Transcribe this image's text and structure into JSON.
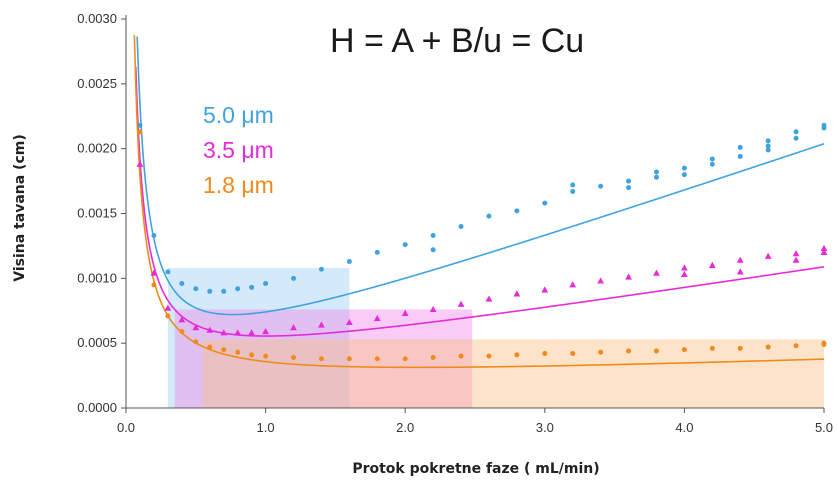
{
  "chart_data": {
    "type": "scatter",
    "title": "H = A + B/u = Cu",
    "xlabel": "Protok pokretne faze ( mL/min)",
    "ylabel": "Visina tavana (cm)",
    "xlim": [
      0,
      5
    ],
    "ylim": [
      0,
      0.003
    ],
    "x_ticks": [
      "0.0",
      "1.0",
      "2.0",
      "3.0",
      "4.0",
      "5.0"
    ],
    "y_ticks": [
      "0.0000",
      "0.0005",
      "0.0010",
      "0.0015",
      "0.0020",
      "0.0025",
      "0.0030"
    ],
    "legend": [
      "5.0 μm",
      "3.5 μm",
      "1.8 μm"
    ],
    "grid": false,
    "series": [
      {
        "name": "5.0 μm",
        "color": "#3fa3e0",
        "marker": "circle",
        "curve": {
          "A": 0.00016,
          "B": 0.000214,
          "C": 0.000367
        },
        "points": [
          [
            0.1,
            0.00218
          ],
          [
            0.2,
            0.00133
          ],
          [
            0.3,
            0.00105
          ],
          [
            0.4,
            0.00096
          ],
          [
            0.5,
            0.00092
          ],
          [
            0.6,
            0.0009
          ],
          [
            0.7,
            0.0009
          ],
          [
            0.8,
            0.00092
          ],
          [
            0.9,
            0.00093
          ],
          [
            1.0,
            0.00096
          ],
          [
            1.2,
            0.001
          ],
          [
            1.4,
            0.00107
          ],
          [
            1.6,
            0.00113
          ],
          [
            1.8,
            0.0012
          ],
          [
            2.0,
            0.00126
          ],
          [
            2.2,
            0.00133
          ],
          [
            2.2,
            0.00122
          ],
          [
            2.4,
            0.0014
          ],
          [
            2.6,
            0.00148
          ],
          [
            2.8,
            0.00152
          ],
          [
            3.0,
            0.00158
          ],
          [
            3.2,
            0.00167
          ],
          [
            3.2,
            0.00172
          ],
          [
            3.4,
            0.00171
          ],
          [
            3.6,
            0.00175
          ],
          [
            3.6,
            0.0017
          ],
          [
            3.8,
            0.00178
          ],
          [
            3.8,
            0.00182
          ],
          [
            4.0,
            0.0018
          ],
          [
            4.0,
            0.00185
          ],
          [
            4.2,
            0.00192
          ],
          [
            4.2,
            0.00188
          ],
          [
            4.4,
            0.00194
          ],
          [
            4.4,
            0.00201
          ],
          [
            4.6,
            0.00206
          ],
          [
            4.6,
            0.00199
          ],
          [
            4.6,
            0.00202
          ],
          [
            4.8,
            0.00208
          ],
          [
            4.8,
            0.00213
          ],
          [
            5.0,
            0.00216
          ],
          [
            5.0,
            0.00218
          ]
        ]
      },
      {
        "name": "3.5 μm",
        "color": "#e62bd8",
        "marker": "triangle",
        "curve": {
          "A": 0.00022,
          "B": 0.000168,
          "C": 0.000167
        },
        "points": [
          [
            0.1,
            0.00188
          ],
          [
            0.2,
            0.00104
          ],
          [
            0.3,
            0.00077
          ],
          [
            0.4,
            0.00068
          ],
          [
            0.5,
            0.00062
          ],
          [
            0.6,
            0.0006
          ],
          [
            0.7,
            0.00058
          ],
          [
            0.8,
            0.00058
          ],
          [
            0.9,
            0.00058
          ],
          [
            1.0,
            0.00059
          ],
          [
            1.2,
            0.00062
          ],
          [
            1.4,
            0.00064
          ],
          [
            1.6,
            0.00066
          ],
          [
            1.8,
            0.00069
          ],
          [
            2.0,
            0.00073
          ],
          [
            2.2,
            0.00076
          ],
          [
            2.4,
            0.0008
          ],
          [
            2.6,
            0.00084
          ],
          [
            2.8,
            0.00088
          ],
          [
            3.0,
            0.00091
          ],
          [
            3.2,
            0.00095
          ],
          [
            3.4,
            0.00098
          ],
          [
            3.6,
            0.00101
          ],
          [
            3.8,
            0.00104
          ],
          [
            4.0,
            0.00108
          ],
          [
            4.0,
            0.00103
          ],
          [
            4.2,
            0.0011
          ],
          [
            4.4,
            0.00114
          ],
          [
            4.4,
            0.00105
          ],
          [
            4.6,
            0.00117
          ],
          [
            4.8,
            0.00119
          ],
          [
            4.8,
            0.00114
          ],
          [
            5.0,
            0.00123
          ],
          [
            5.0,
            0.0012
          ]
        ]
      },
      {
        "name": "1.8 μm",
        "color": "#f08a1c",
        "marker": "circle",
        "curve": {
          "A": 0.000157,
          "B": 0.000163,
          "C": 3.75e-05
        },
        "points": [
          [
            0.1,
            0.00213
          ],
          [
            0.2,
            0.00095
          ],
          [
            0.3,
            0.00071
          ],
          [
            0.4,
            0.00059
          ],
          [
            0.5,
            0.00051
          ],
          [
            0.6,
            0.00047
          ],
          [
            0.7,
            0.00045
          ],
          [
            0.8,
            0.00043
          ],
          [
            0.9,
            0.00041
          ],
          [
            1.0,
            0.0004
          ],
          [
            1.2,
            0.00039
          ],
          [
            1.4,
            0.00038
          ],
          [
            1.6,
            0.00038
          ],
          [
            1.8,
            0.00038
          ],
          [
            2.0,
            0.00038
          ],
          [
            2.2,
            0.00039
          ],
          [
            2.4,
            0.0004
          ],
          [
            2.6,
            0.0004
          ],
          [
            2.8,
            0.00041
          ],
          [
            3.0,
            0.00042
          ],
          [
            3.2,
            0.00042
          ],
          [
            3.4,
            0.00043
          ],
          [
            3.6,
            0.00044
          ],
          [
            3.8,
            0.00044
          ],
          [
            4.0,
            0.00045
          ],
          [
            4.2,
            0.00046
          ],
          [
            4.4,
            0.00046
          ],
          [
            4.6,
            0.00047
          ],
          [
            4.8,
            0.00048
          ],
          [
            5.0,
            0.00049
          ],
          [
            5.0,
            0.0005
          ]
        ]
      }
    ],
    "shaded_regions": [
      {
        "color": "#9fd0f5",
        "opacity": 0.45,
        "x": [
          0.3,
          1.6
        ],
        "y_top": 0.00108
      },
      {
        "color": "#f08de6",
        "opacity": 0.45,
        "x": [
          0.35,
          2.48
        ],
        "y_top": 0.00076
      },
      {
        "color": "#f8c08a",
        "opacity": 0.45,
        "x": [
          0.55,
          5.0
        ],
        "y_top": 0.00053
      }
    ]
  }
}
